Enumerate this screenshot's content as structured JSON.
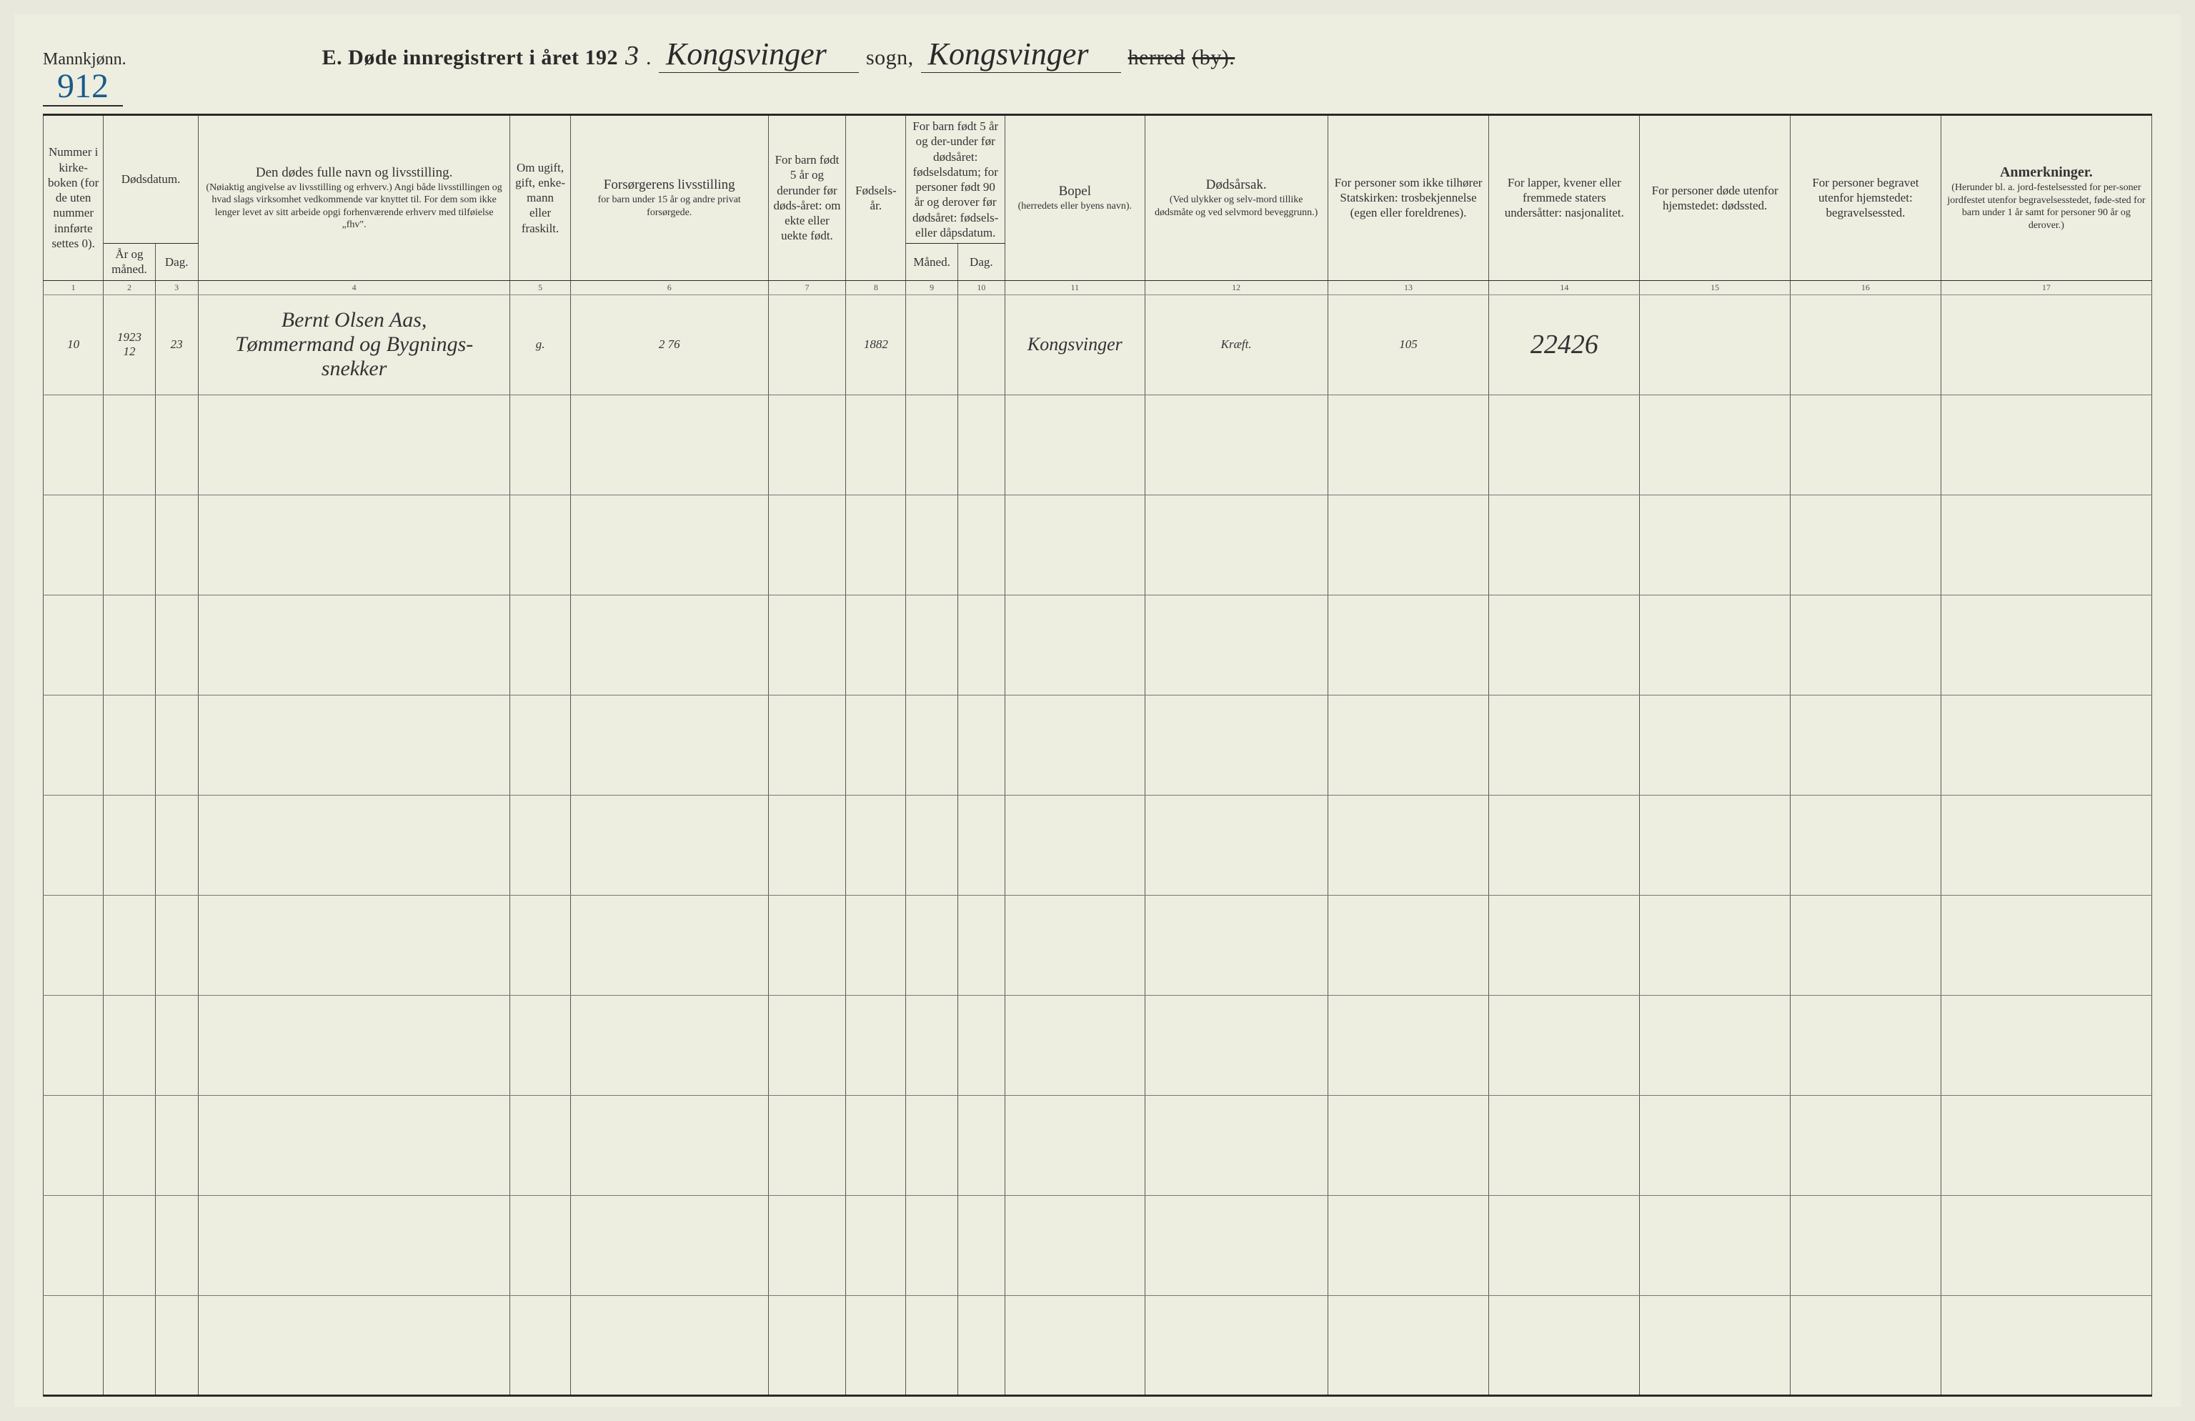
{
  "header": {
    "gender_label": "Mannkjønn.",
    "page_number": "912",
    "title_prefix": "E.  Døde  innregistrert  i  året  192",
    "year_digit": "3",
    "sogn_value": "Kongsvinger",
    "sogn_label": "sogn,",
    "herred_value": "Kongsvinger",
    "herred_label_strike": "herred",
    "by_label": "(by)."
  },
  "columns": {
    "c1": "Nummer i kirke-boken (for de uten nummer innførte settes 0).",
    "c_dodsdatum": "Dødsdatum.",
    "c2": "År og måned.",
    "c3": "Dag.",
    "c4_title": "Den dødes fulle navn og livsstilling.",
    "c4_sub": "(Nøiaktig angivelse av livsstilling og erhverv.) Angi både livsstillingen og hvad slags virksomhet vedkommende var knyttet til. For dem som ikke lenger levet av sitt arbeide opgi forhenværende erhverv med tilføielse „fhv\".",
    "c5": "Om ugift, gift, enke-mann eller fraskilt.",
    "c6_title": "Forsørgerens livsstilling",
    "c6_sub": "for barn under 15 år og andre privat forsørgede.",
    "c7": "For barn født 5 år og derunder før døds-året: om ekte eller uekte født.",
    "c8": "Fødsels-år.",
    "c9t": "For barn født 5 år og der-under før dødsåret: fødselsdatum; for personer født 90 år og derover før dødsåret: fødsels- eller dåpsdatum.",
    "c9": "Måned.",
    "c10": "Dag.",
    "c11_title": "Bopel",
    "c11_sub": "(herredets eller byens navn).",
    "c12_title": "Dødsårsak.",
    "c12_sub": "(Ved ulykker og selv-mord tillike dødsmåte og ved selvmord beveggrunn.)",
    "c13": "For personer som ikke tilhører Statskirken: trosbekjennelse (egen eller foreldrenes).",
    "c14": "For lapper, kvener eller fremmede staters undersåtter: nasjonalitet.",
    "c15": "For personer døde utenfor hjemstedet: dødssted.",
    "c16": "For personer begravet utenfor hjemstedet: begravelsessted.",
    "c17_title": "Anmerkninger.",
    "c17_sub": "(Herunder bl. a. jord-festelsessted for per-soner jordfestet utenfor begravelsesstedet, føde-sted for barn under 1 år samt for personer 90 år og derover.)"
  },
  "colnums": [
    "1",
    "2",
    "3",
    "4",
    "5",
    "6",
    "7",
    "8",
    "9",
    "10",
    "11",
    "12",
    "13",
    "14",
    "15",
    "16",
    "17"
  ],
  "row": {
    "num": "10",
    "year_month": "1923\n12",
    "day": "23",
    "name": "Bernt Olsen Aas,\nTømmermand og Bygnings-\nsnekker",
    "marital": "g.",
    "provider": "2 76",
    "birth_year": "1882",
    "residence": "Kongsvinger",
    "cause": "Kræft.",
    "col13": "105",
    "col14": "22426"
  },
  "style": {
    "background": "#edeee0",
    "ink": "#2a2a2a",
    "blue_ink": "#1a5a8a",
    "faded_ink": "#8a8a7a",
    "rule_light": "#777",
    "header_font_size_pt": 22,
    "body_font_size_pt": 13,
    "cursive_font_size_pt": 26,
    "empty_rows": 10
  }
}
